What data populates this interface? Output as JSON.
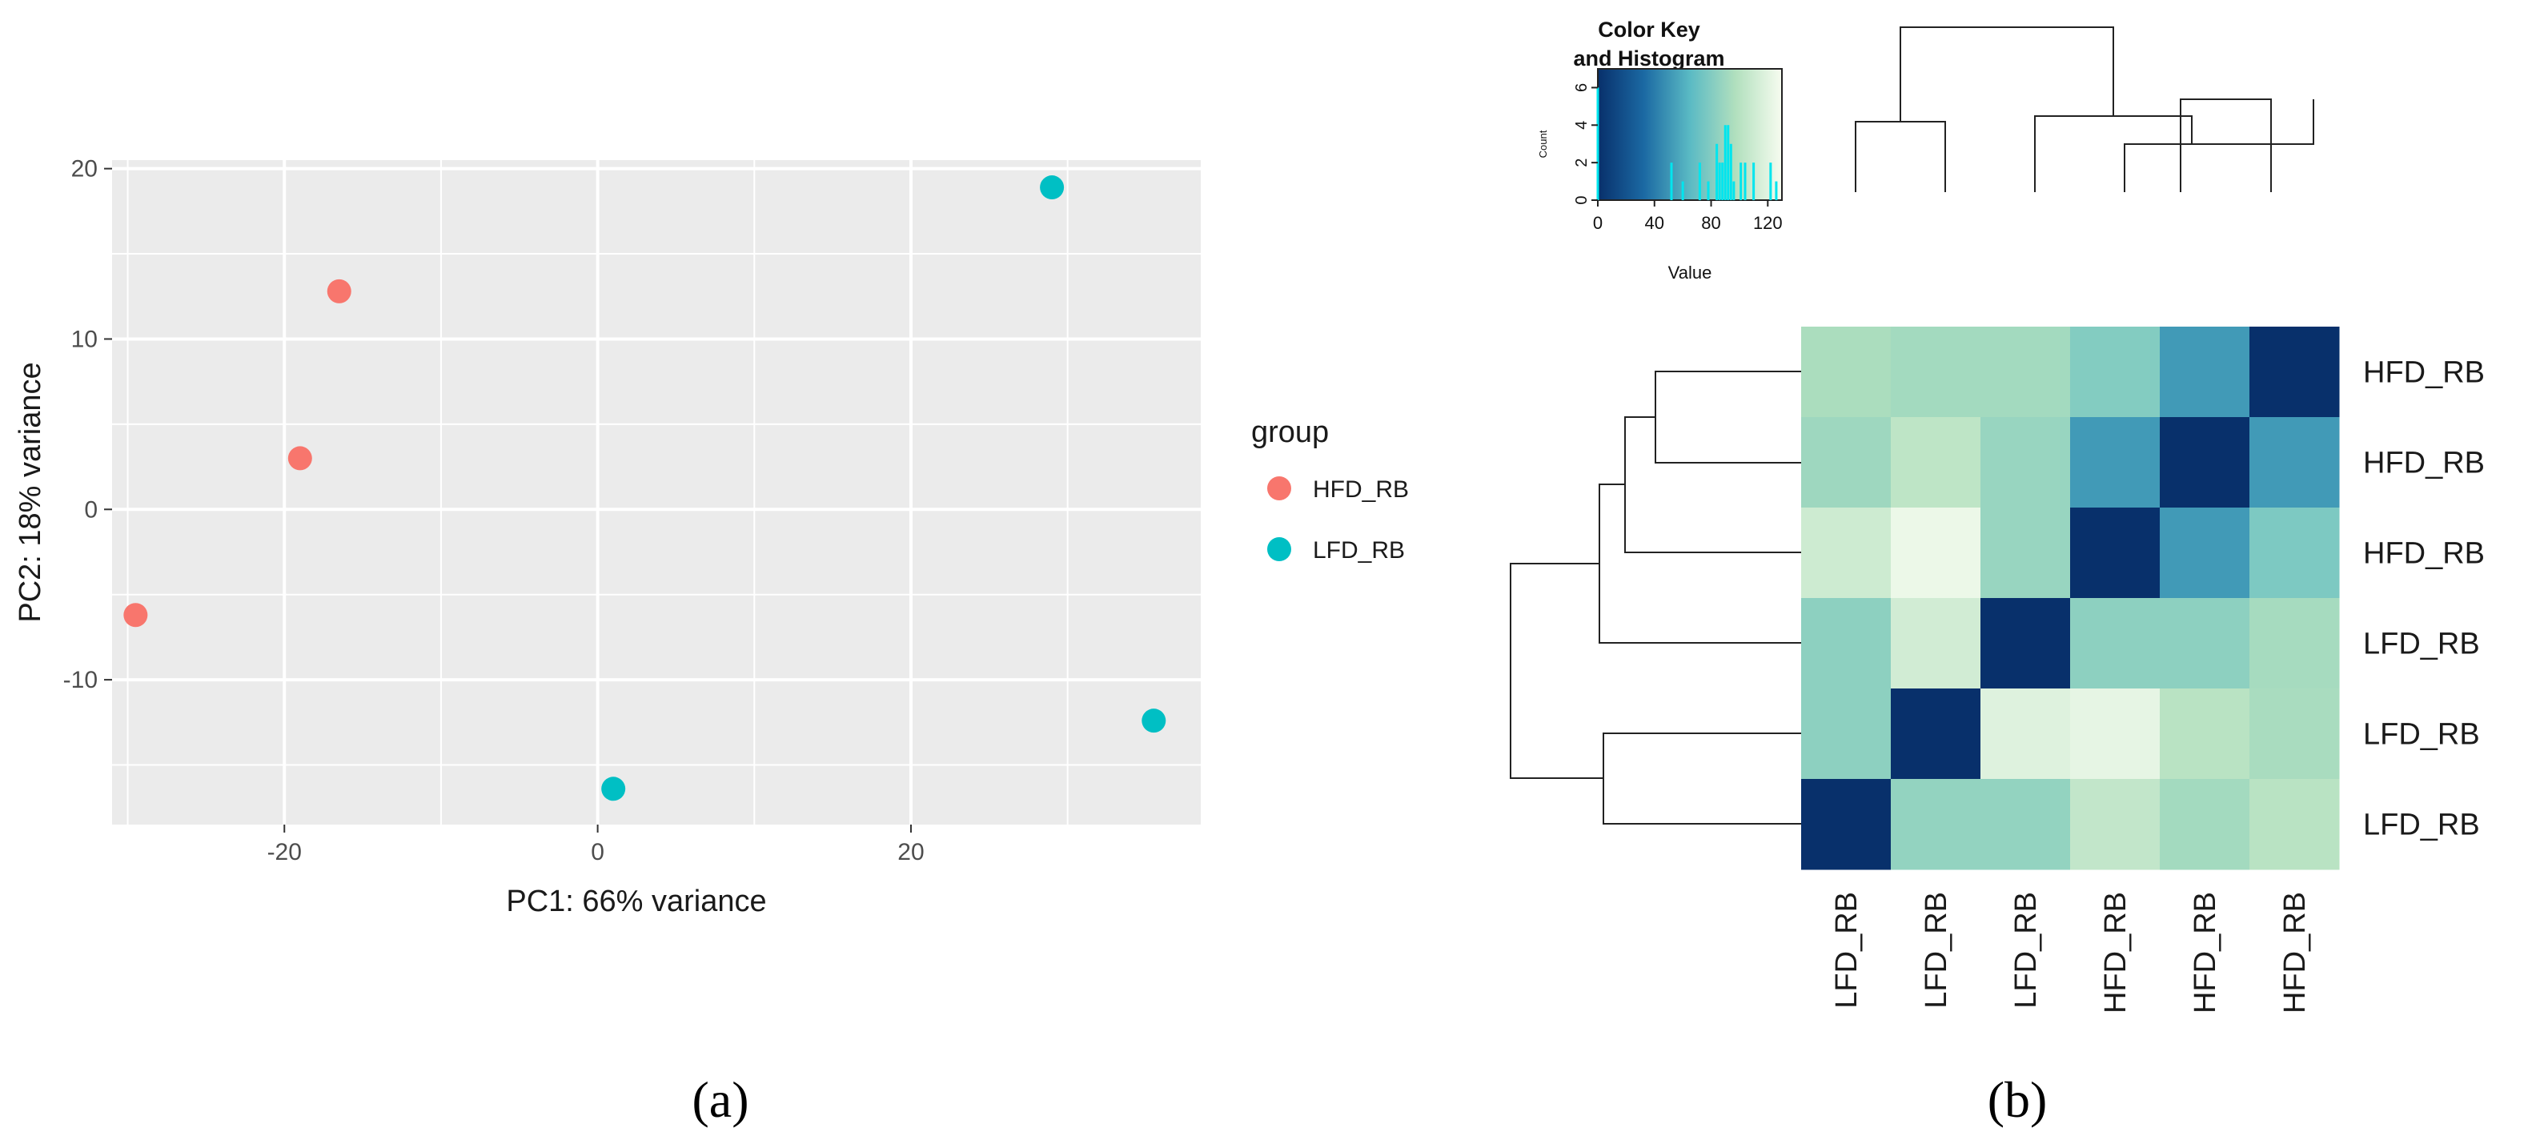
{
  "panels": {
    "a_label": "(a)",
    "b_label": "(b)"
  },
  "chart_data": [
    {
      "type": "scatter",
      "panel": "a",
      "title": "",
      "xlabel": "PC1: 66% variance",
      "ylabel": "PC2: 18% variance",
      "xlim": [
        -31,
        38.5
      ],
      "ylim": [
        -18.5,
        20.5
      ],
      "xticks": [
        -20,
        0,
        20
      ],
      "xtick_labels": [
        "-20",
        "0",
        "20"
      ],
      "yticks": [
        -10,
        0,
        10,
        20
      ],
      "ytick_labels": [
        "-10",
        "0",
        "10",
        "20"
      ],
      "grid": true,
      "legend": {
        "title": "group",
        "placement": "right"
      },
      "series": [
        {
          "name": "HFD_RB",
          "color": "#F8766D",
          "points": [
            {
              "x": -16.5,
              "y": 12.8
            },
            {
              "x": -19.0,
              "y": 3.0
            },
            {
              "x": -29.5,
              "y": -6.2
            }
          ]
        },
        {
          "name": "LFD_RB",
          "color": "#00BFC4",
          "points": [
            {
              "x": 29.0,
              "y": 18.9
            },
            {
              "x": 1.0,
              "y": -16.4
            },
            {
              "x": 35.5,
              "y": -12.4
            }
          ]
        }
      ]
    },
    {
      "type": "heatmap",
      "panel": "b",
      "title": "",
      "row_labels": [
        "HFD_RB",
        "HFD_RB",
        "HFD_RB",
        "LFD_RB",
        "LFD_RB",
        "LFD_RB"
      ],
      "col_labels": [
        "LFD_RB",
        "LFD_RB",
        "LFD_RB",
        "HFD_RB",
        "HFD_RB",
        "HFD_RB"
      ],
      "values": [
        [
          95,
          92,
          92,
          80,
          52,
          0
        ],
        [
          90,
          103,
          88,
          52,
          0,
          52
        ],
        [
          110,
          125,
          88,
          0,
          52,
          78
        ],
        [
          84,
          112,
          0,
          84,
          84,
          93
        ],
        [
          84,
          0,
          118,
          122,
          101,
          94
        ],
        [
          0,
          86,
          86,
          105,
          92,
          101
        ]
      ],
      "color_scale": {
        "low": "#08306B",
        "mid": "#5ABAC4",
        "high": "#F7FCF0",
        "range": [
          0,
          130
        ]
      },
      "row_dendrogram": "present",
      "col_dendrogram": "present",
      "color_key": {
        "title_line1": "Color Key",
        "title_line2": "and Histogram",
        "xlabel": "Value",
        "ylabel": "Count",
        "xticks": [
          "0",
          "40",
          "80",
          "120"
        ],
        "yticks": [
          "0",
          "2",
          "4",
          "6"
        ],
        "xlim": [
          0,
          130
        ],
        "ylim": [
          0,
          7
        ],
        "histogram": [
          {
            "x": 0,
            "count": 6
          },
          {
            "x": 52,
            "count": 2
          },
          {
            "x": 60,
            "count": 1
          },
          {
            "x": 72,
            "count": 2
          },
          {
            "x": 78,
            "count": 1
          },
          {
            "x": 84,
            "count": 3
          },
          {
            "x": 86,
            "count": 2
          },
          {
            "x": 88,
            "count": 2
          },
          {
            "x": 90,
            "count": 4
          },
          {
            "x": 92,
            "count": 4
          },
          {
            "x": 94,
            "count": 3
          },
          {
            "x": 96,
            "count": 1
          },
          {
            "x": 101,
            "count": 2
          },
          {
            "x": 104,
            "count": 2
          },
          {
            "x": 110,
            "count": 2
          },
          {
            "x": 122,
            "count": 2
          },
          {
            "x": 126,
            "count": 1
          }
        ]
      }
    }
  ]
}
